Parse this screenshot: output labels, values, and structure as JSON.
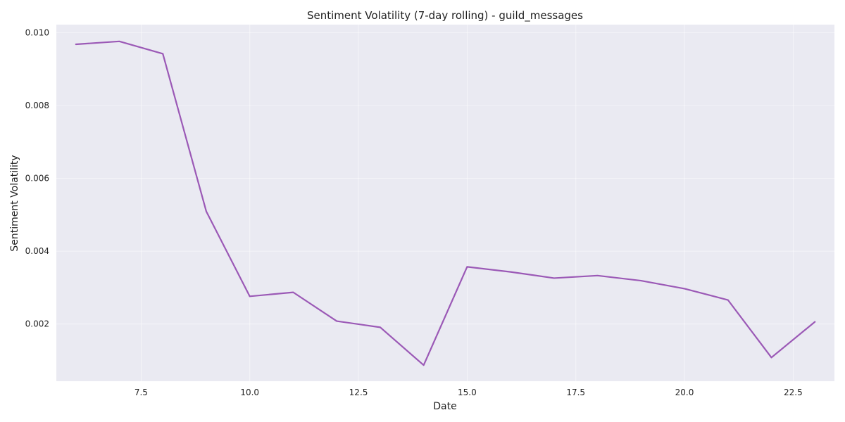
{
  "chart_data": {
    "type": "line",
    "title": "Sentiment Volatility (7-day rolling) - guild_messages",
    "xlabel": "Date",
    "ylabel": "Sentiment Volatility",
    "xlim": [
      5.55,
      23.45
    ],
    "ylim": [
      0.00043,
      0.01022
    ],
    "x_ticks": [
      7.5,
      10.0,
      12.5,
      15.0,
      17.5,
      20.0,
      22.5
    ],
    "x_tick_labels": [
      "7.5",
      "10.0",
      "12.5",
      "15.0",
      "17.5",
      "20.0",
      "22.5"
    ],
    "y_ticks": [
      0.002,
      0.004,
      0.006,
      0.008,
      0.01
    ],
    "y_tick_labels": [
      "0.002",
      "0.004",
      "0.006",
      "0.008",
      "0.010"
    ],
    "grid": true,
    "series": [
      {
        "color": "#9b59b6",
        "x": [
          6,
          7,
          8,
          9,
          10,
          11,
          12,
          13,
          14,
          15,
          16,
          17,
          18,
          19,
          20,
          21,
          22,
          23
        ],
        "y": [
          0.00968,
          0.00976,
          0.00942,
          0.00509,
          0.00276,
          0.00287,
          0.00208,
          0.00191,
          0.00087,
          0.00357,
          0.00343,
          0.00326,
          0.00333,
          0.00319,
          0.00297,
          0.00266,
          0.00108,
          0.00206
        ]
      }
    ]
  }
}
